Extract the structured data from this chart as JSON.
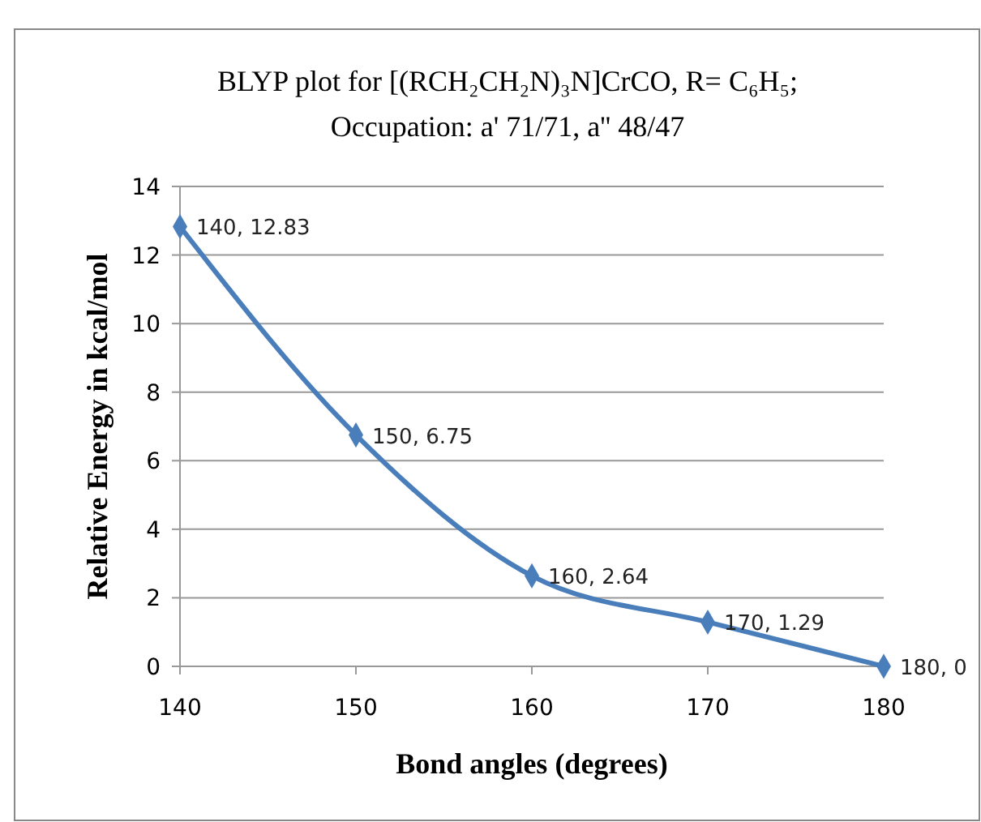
{
  "chart_data": {
    "type": "line",
    "title": "BLYP plot for [(RCH₂CH₂N)₃N]CrCO, R= C₆H₅;\nOccupation: a' 71/71, a'' 48/47",
    "xlabel": "Bond angles  (degrees)",
    "ylabel": "Relative Energy in kcal/mol",
    "x": [
      140,
      150,
      160,
      170,
      180
    ],
    "series": [
      {
        "color": "#4a7ebb",
        "values": [
          12.83,
          6.75,
          2.64,
          1.29,
          0
        ],
        "value_labels": [
          "140, 12.83",
          "150, 6.75",
          "160, 2.64",
          "170, 1.29",
          "180, 0"
        ]
      }
    ],
    "xlim": [
      140,
      180
    ],
    "xticks": [
      140,
      150,
      160,
      170,
      180
    ],
    "ylim": [
      0,
      14
    ],
    "yticks": [
      0,
      2,
      4,
      6,
      8,
      10,
      12,
      14
    ],
    "grid": "y",
    "marker": "diamond",
    "line_style": "solid"
  }
}
